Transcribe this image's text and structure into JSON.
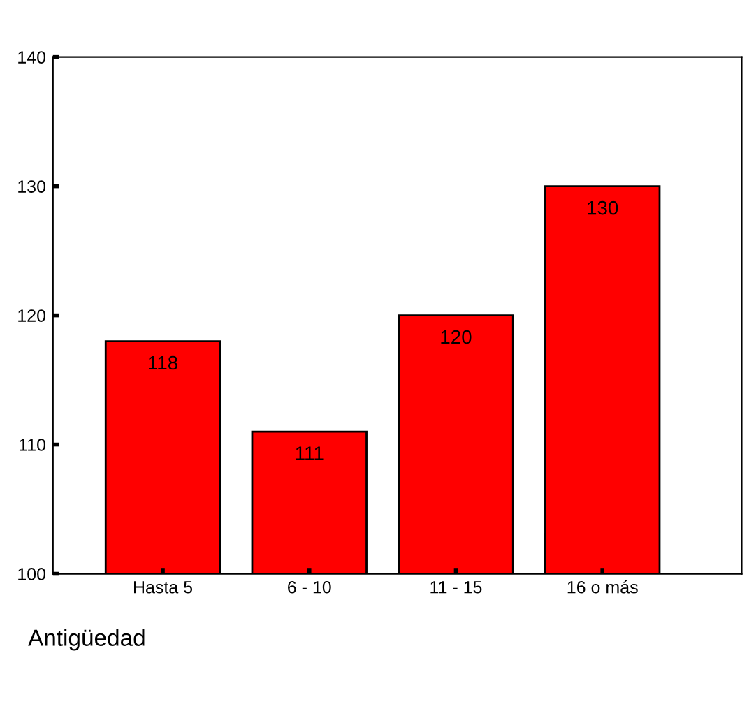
{
  "chart_data": {
    "type": "bar",
    "xlabel": "Antigüedad",
    "categories": [
      "Hasta 5",
      "6 - 10",
      "11 - 15",
      "16 o más"
    ],
    "values": [
      118,
      111,
      120,
      130
    ],
    "color": "#ff0000",
    "ylim": [
      100,
      140
    ],
    "yticks": [
      100,
      110,
      120,
      130,
      140
    ],
    "data_labels": true,
    "grid": false,
    "legend": false
  }
}
